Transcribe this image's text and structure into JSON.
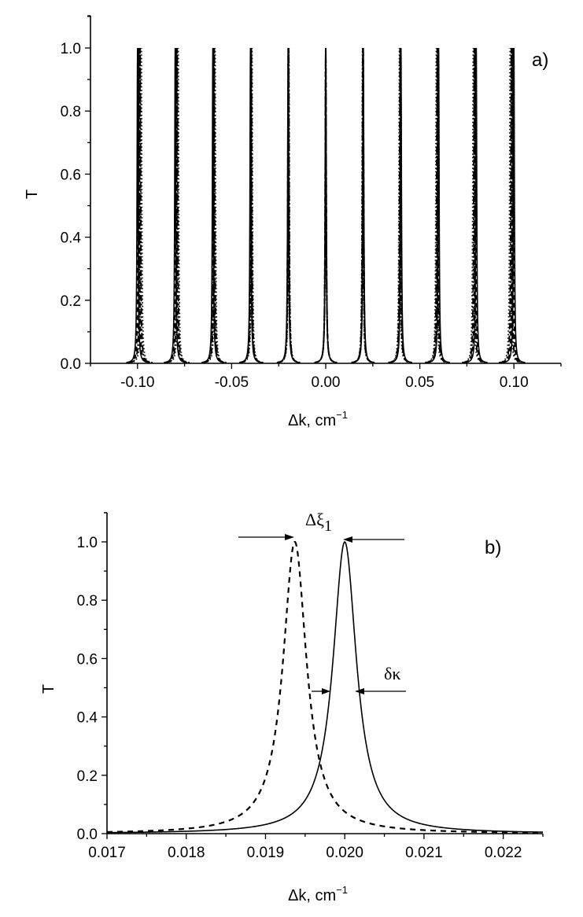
{
  "chart_data": [
    {
      "id": "a",
      "type": "line",
      "panel_label": "a)",
      "xlabel": "Δk, cm",
      "xlabel_sup": "−1",
      "ylabel": "T",
      "xlim": [
        -0.125,
        0.125
      ],
      "ylim": [
        0,
        1.1
      ],
      "x_ticks": [
        -0.1,
        -0.05,
        0.0,
        0.05,
        0.1
      ],
      "x_tick_labels": [
        "-0.10",
        "-0.05",
        "0.00",
        "0.05",
        "0.10"
      ],
      "x_minor_step": 0.025,
      "y_ticks": [
        0.0,
        0.2,
        0.4,
        0.6,
        0.8,
        1.0
      ],
      "y_tick_labels": [
        "0.0",
        "0.2",
        "0.4",
        "0.6",
        "0.8",
        "1.0"
      ],
      "y_minor_step": 0.1,
      "grid": false,
      "legend": null,
      "series": [
        {
          "name": "solid",
          "style": "solid",
          "peak_positions": [
            -0.1,
            -0.08,
            -0.06,
            -0.04,
            -0.02,
            0.0,
            0.02,
            0.04,
            0.06,
            0.08,
            0.1
          ],
          "peak_height": 1.0,
          "halfwidth": 0.0003
        },
        {
          "name": "dashed",
          "style": "dashed",
          "peak_positions": [
            -0.0993,
            -0.0795,
            -0.0597,
            -0.0398,
            -0.0199,
            0.0,
            0.0199,
            0.0398,
            0.0597,
            0.0795,
            0.0993
          ],
          "peak_height": 1.0,
          "halfwidth": 0.0003
        },
        {
          "name": "dash-dot",
          "style": "dashdot",
          "peak_positions": [
            -0.0986,
            -0.0789,
            -0.0592,
            -0.0395,
            -0.0197,
            0.0,
            0.0197,
            0.0395,
            0.0592,
            0.0789,
            0.0986
          ],
          "peak_height": 1.0,
          "halfwidth": 0.0003
        },
        {
          "name": "dotted",
          "style": "dotted",
          "peak_positions": [
            -0.098,
            -0.0784,
            -0.0588,
            -0.0392,
            -0.0196,
            0.0,
            0.0196,
            0.0392,
            0.0588,
            0.0784,
            0.098
          ],
          "peak_height": 1.0,
          "halfwidth": 0.0003
        }
      ]
    },
    {
      "id": "b",
      "type": "line",
      "panel_label": "b)",
      "xlabel": "Δk, cm",
      "xlabel_sup": "−1",
      "ylabel": "T",
      "xlim": [
        0.017,
        0.0225
      ],
      "ylim": [
        0,
        1.1
      ],
      "x_ticks": [
        0.017,
        0.018,
        0.019,
        0.02,
        0.021,
        0.022
      ],
      "x_tick_labels": [
        "0.017",
        "0.018",
        "0.019",
        "0.020",
        "0.021",
        "0.022"
      ],
      "x_minor_step": 0.0005,
      "y_ticks": [
        0.0,
        0.2,
        0.4,
        0.6,
        0.8,
        1.0
      ],
      "y_tick_labels": [
        "0.0",
        "0.2",
        "0.4",
        "0.6",
        "0.8",
        "1.0"
      ],
      "y_minor_step": 0.1,
      "grid": false,
      "legend": null,
      "series": [
        {
          "name": "solid",
          "style": "solid",
          "peak_position": 0.02,
          "peak_height": 1.0,
          "halfwidth": 0.00018
        },
        {
          "name": "dashed",
          "style": "dashed",
          "peak_position": 0.01937,
          "peak_height": 1.0,
          "halfwidth": 0.00018
        }
      ],
      "annotations": [
        {
          "text": "Δξ",
          "sub": "1",
          "meaning": "peak shift between dashed and solid curves",
          "at_y": 1.0
        },
        {
          "text": "δκ",
          "meaning": "half-width of solid peak",
          "at_y": 0.5
        }
      ]
    }
  ]
}
